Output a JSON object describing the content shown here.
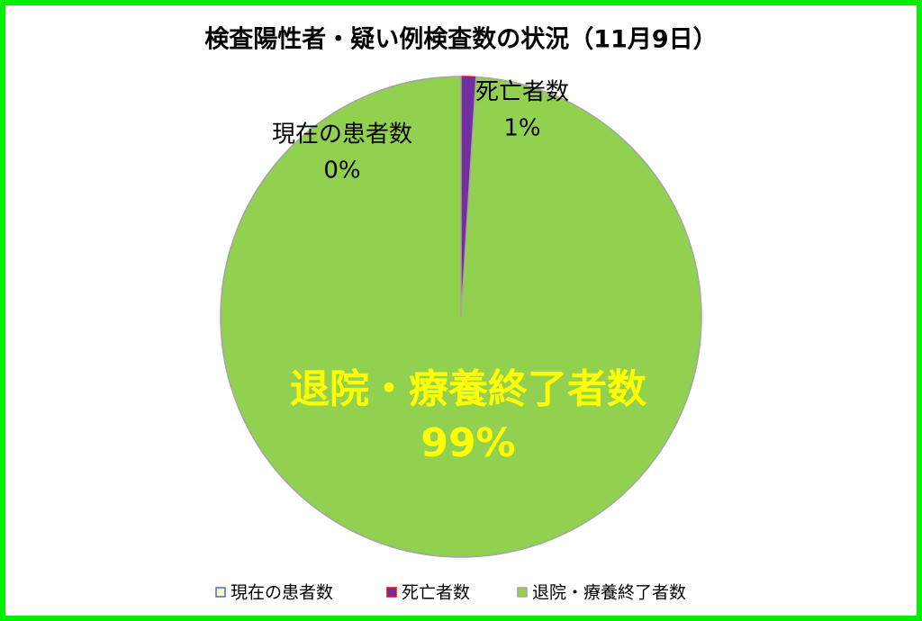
{
  "chart_data": {
    "type": "pie",
    "title": "検査陽性者・疑い例検査数の状況（11月9日）",
    "categories": [
      "現在の患者数",
      "死亡者数",
      "退院・療養終了者数"
    ],
    "values": [
      0,
      1,
      99
    ],
    "value_labels": [
      "0%",
      "1%",
      "99%"
    ],
    "colors": [
      "#fff2cc",
      "#7030a0",
      "#92d050"
    ],
    "edge_colors": [
      "#4472c4",
      "#ff0000",
      "#a5a5a5"
    ],
    "legend": "bottom"
  }
}
